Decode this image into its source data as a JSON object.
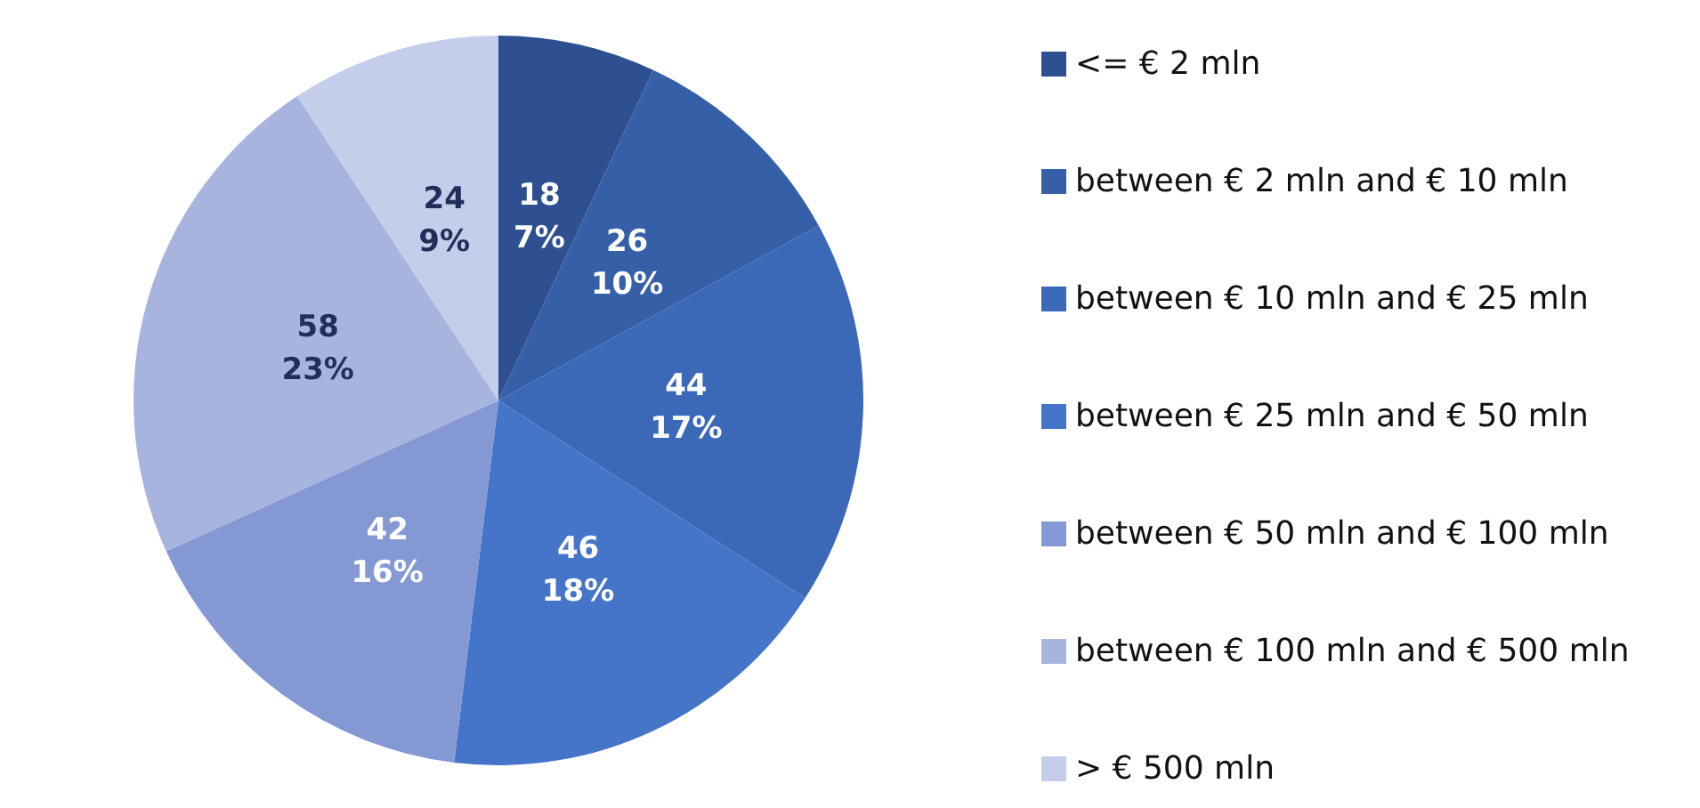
{
  "chart_data": {
    "type": "pie",
    "categories": [
      "<= € 2 mln",
      "between € 2 mln and € 10 mln",
      "between € 10 mln and € 25 mln",
      "between € 25 mln and € 50 mln",
      "between € 50 mln and € 100 mln",
      "between € 100 mln and € 500 mln",
      "> € 500 mln"
    ],
    "values": [
      18,
      26,
      44,
      46,
      42,
      58,
      24
    ],
    "value_labels": [
      "18\n7%",
      "26\n10%",
      "44\n17%",
      "46\n18%",
      "42\n16%",
      "58\n23%",
      "24\n9%"
    ],
    "colors": [
      "#2e5090",
      "#3560a8",
      "#3c68b8",
      "#4575c8",
      "#8499d4",
      "#a6b4de",
      "#c4cdea"
    ],
    "legend": "right"
  }
}
